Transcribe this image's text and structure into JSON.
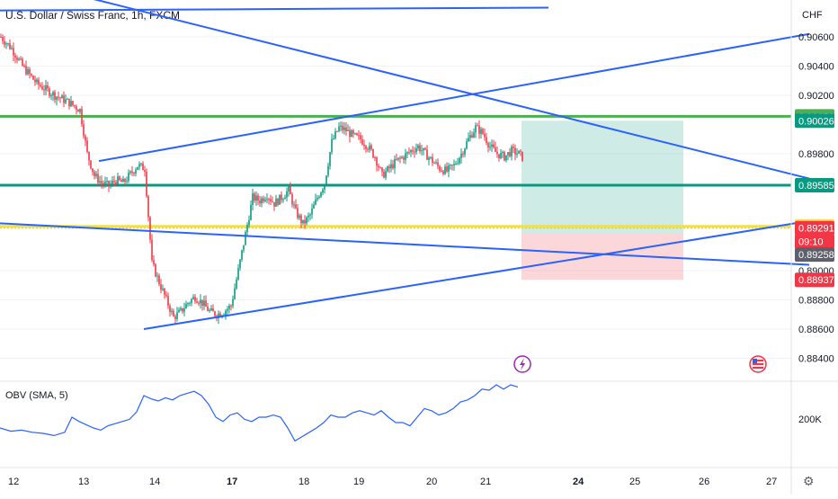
{
  "header": {
    "symbol_title": "U.S. Dollar / Swiss Franc, 1h, FXCM"
  },
  "chart_data": {
    "type": "candlestick",
    "symbol": "U.S. Dollar / Swiss Franc",
    "interval": "1h",
    "source": "FXCM",
    "currency_label": "CHF",
    "y_ticks": [
      "0.90600",
      "0.90400",
      "0.90200",
      "0.89800",
      "0.89000",
      "0.88800",
      "0.88600",
      "0.88400"
    ],
    "ylim": [
      0.884,
      0.907
    ],
    "x_tick_labels": [
      {
        "label": "12",
        "bold": false
      },
      {
        "label": "13",
        "bold": false
      },
      {
        "label": "14",
        "bold": false
      },
      {
        "label": "17",
        "bold": true
      },
      {
        "label": "18",
        "bold": false
      },
      {
        "label": "19",
        "bold": false
      },
      {
        "label": "20",
        "bold": false
      },
      {
        "label": "21",
        "bold": false
      },
      {
        "label": "24",
        "bold": true
      },
      {
        "label": "25",
        "bold": false
      },
      {
        "label": "26",
        "bold": false
      },
      {
        "label": "27",
        "bold": false
      }
    ],
    "price_path": [
      [
        0,
        0.906
      ],
      [
        6,
        0.9052
      ],
      [
        12,
        0.904
      ],
      [
        20,
        0.9028
      ],
      [
        30,
        0.902
      ],
      [
        38,
        0.9015
      ],
      [
        44,
        0.901
      ],
      [
        48,
        0.898
      ],
      [
        52,
        0.8965
      ],
      [
        56,
        0.896
      ],
      [
        60,
        0.8958
      ],
      [
        64,
        0.8962
      ],
      [
        68,
        0.896
      ],
      [
        72,
        0.8966
      ],
      [
        76,
        0.8972
      ],
      [
        80,
        0.897
      ],
      [
        84,
        0.8905
      ],
      [
        88,
        0.8892
      ],
      [
        92,
        0.888
      ],
      [
        96,
        0.8868
      ],
      [
        100,
        0.8872
      ],
      [
        104,
        0.8878
      ],
      [
        108,
        0.8882
      ],
      [
        112,
        0.8878
      ],
      [
        116,
        0.8872
      ],
      [
        120,
        0.887
      ],
      [
        124,
        0.8872
      ],
      [
        128,
        0.8876
      ],
      [
        132,
        0.89
      ],
      [
        136,
        0.8925
      ],
      [
        140,
        0.895
      ],
      [
        144,
        0.8948
      ],
      [
        148,
        0.8952
      ],
      [
        152,
        0.8946
      ],
      [
        156,
        0.895
      ],
      [
        160,
        0.8955
      ],
      [
        164,
        0.894
      ],
      [
        168,
        0.8932
      ],
      [
        172,
        0.8938
      ],
      [
        176,
        0.895
      ],
      [
        180,
        0.896
      ],
      [
        184,
        0.8988
      ],
      [
        188,
        0.8998
      ],
      [
        192,
        0.8996
      ],
      [
        196,
        0.8992
      ],
      [
        200,
        0.899
      ],
      [
        204,
        0.8985
      ],
      [
        208,
        0.8978
      ],
      [
        212,
        0.8965
      ],
      [
        216,
        0.897
      ],
      [
        220,
        0.8975
      ],
      [
        224,
        0.8978
      ],
      [
        228,
        0.8982
      ],
      [
        232,
        0.8985
      ],
      [
        236,
        0.898
      ],
      [
        240,
        0.8975
      ],
      [
        244,
        0.897
      ],
      [
        248,
        0.8968
      ],
      [
        252,
        0.8972
      ],
      [
        256,
        0.898
      ],
      [
        260,
        0.899
      ],
      [
        264,
        0.8998
      ],
      [
        268,
        0.8994
      ],
      [
        272,
        0.8985
      ],
      [
        276,
        0.898
      ],
      [
        280,
        0.8978
      ],
      [
        284,
        0.8982
      ],
      [
        288,
        0.898
      ],
      [
        292,
        0.8975
      ],
      [
        296,
        0.8968
      ],
      [
        300,
        0.896
      ],
      [
        304,
        0.8955
      ],
      [
        308,
        0.8945
      ],
      [
        312,
        0.8935
      ],
      [
        316,
        0.893
      ],
      [
        320,
        0.8925
      ],
      [
        324,
        0.893
      ],
      [
        328,
        0.8928
      ],
      [
        332,
        0.8922
      ],
      [
        336,
        0.8926
      ],
      [
        340,
        0.8929
      ]
    ],
    "drawings": {
      "horizontal_levels": [
        {
          "price": 0.90056,
          "color": "#4caf50",
          "label": "0.90056"
        },
        {
          "price": 0.89585,
          "color": "#089981",
          "label": "0.89585"
        },
        {
          "price": 0.89303,
          "color": "#f0e04b",
          "label": "0.89303"
        }
      ],
      "trend_lines": [
        {
          "name": "upper-left-line",
          "from": [
            -10,
            0.9078
          ],
          "to": [
            305,
            0.908
          ]
        },
        {
          "name": "falling-resistance",
          "from": [
            -10,
            0.9105
          ],
          "to": [
            450,
            0.8963
          ]
        },
        {
          "name": "rising-channel-top",
          "from": [
            55,
            0.8975
          ],
          "to": [
            450,
            0.9062
          ]
        },
        {
          "name": "flat-support",
          "from": [
            -10,
            0.8933
          ],
          "to": [
            450,
            0.8904
          ]
        },
        {
          "name": "rising-support",
          "from": [
            80,
            0.886
          ],
          "to": [
            450,
            0.8934
          ]
        }
      ],
      "position_box": {
        "entry": 0.89258,
        "target": 0.90026,
        "stop": 0.88937,
        "start_x": 290,
        "end_x": 380,
        "target_label": "0.90026",
        "stop_label": "0.88937"
      }
    },
    "price_labels": [
      {
        "text": "0.90056",
        "bg": "#4caf50",
        "price": 0.90056
      },
      {
        "text": "0.90026",
        "bg": "#089981",
        "price": 0.90026
      },
      {
        "text": "0.89585",
        "bg": "#089981",
        "price": 0.89585
      },
      {
        "text": "0.89303",
        "bg": "#f0e04b",
        "price": 0.89303,
        "dark": true
      },
      {
        "text": "0.89291",
        "bg": "#f23645",
        "price": 0.89291
      },
      {
        "text": "09:10",
        "bg": "#f23645",
        "price": 0.892
      },
      {
        "text": "0.89258",
        "bg": "#5d606b",
        "price": 0.8911
      },
      {
        "text": "0.88937",
        "bg": "#f23645",
        "price": 0.88937
      }
    ],
    "indicator": {
      "title": "OBV (SMA, 5)",
      "tick_label": "200K",
      "values": [
        [
          0,
          460
        ],
        [
          6,
          457
        ],
        [
          12,
          458
        ],
        [
          18,
          456
        ],
        [
          24,
          455
        ],
        [
          30,
          453
        ],
        [
          36,
          456
        ],
        [
          40,
          470
        ],
        [
          44,
          466
        ],
        [
          48,
          463
        ],
        [
          52,
          460
        ],
        [
          56,
          458
        ],
        [
          60,
          462
        ],
        [
          64,
          464
        ],
        [
          68,
          466
        ],
        [
          72,
          468
        ],
        [
          76,
          475
        ],
        [
          80,
          490
        ],
        [
          84,
          487
        ],
        [
          88,
          485
        ],
        [
          92,
          488
        ],
        [
          96,
          486
        ],
        [
          100,
          490
        ],
        [
          104,
          492
        ],
        [
          108,
          494
        ],
        [
          112,
          490
        ],
        [
          116,
          482
        ],
        [
          120,
          470
        ],
        [
          124,
          466
        ],
        [
          128,
          472
        ],
        [
          132,
          474
        ],
        [
          136,
          468
        ],
        [
          140,
          466
        ],
        [
          144,
          470
        ],
        [
          148,
          470
        ],
        [
          152,
          472
        ],
        [
          156,
          470
        ],
        [
          160,
          460
        ],
        [
          164,
          448
        ],
        [
          168,
          452
        ],
        [
          172,
          456
        ],
        [
          176,
          460
        ],
        [
          180,
          465
        ],
        [
          184,
          472
        ],
        [
          188,
          470
        ],
        [
          192,
          470
        ],
        [
          196,
          474
        ],
        [
          200,
          476
        ],
        [
          204,
          474
        ],
        [
          208,
          472
        ],
        [
          212,
          476
        ],
        [
          216,
          470
        ],
        [
          220,
          465
        ],
        [
          224,
          465
        ],
        [
          228,
          462
        ],
        [
          232,
          470
        ],
        [
          236,
          478
        ],
        [
          240,
          476
        ],
        [
          244,
          472
        ],
        [
          248,
          474
        ],
        [
          252,
          478
        ],
        [
          256,
          484
        ],
        [
          260,
          486
        ],
        [
          264,
          490
        ],
        [
          268,
          496
        ],
        [
          272,
          495
        ],
        [
          276,
          500
        ],
        [
          280,
          496
        ],
        [
          284,
          500
        ],
        [
          288,
          498
        ]
      ]
    }
  },
  "axis_footer": {
    "settings_label": "⚙"
  }
}
